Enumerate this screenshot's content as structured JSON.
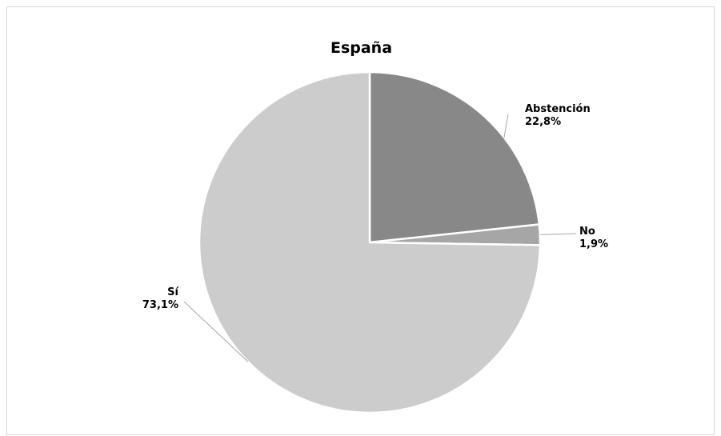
{
  "chart_data": {
    "type": "pie",
    "title": "España",
    "slices": [
      {
        "label": "Abstención",
        "value": 22.8,
        "value_label": "22,8%",
        "color": "#888888"
      },
      {
        "label": "No",
        "value": 1.9,
        "value_label": "1,9%",
        "color": "#a6a6a6"
      },
      {
        "label": "Sí",
        "value": 73.1,
        "value_label": "73,1%",
        "color": "#cccccc"
      }
    ],
    "slice_border_color": "#ffffff",
    "leader_line_color": "#a6a6a6",
    "legend": "none",
    "start": "12 o'clock, clockwise"
  }
}
